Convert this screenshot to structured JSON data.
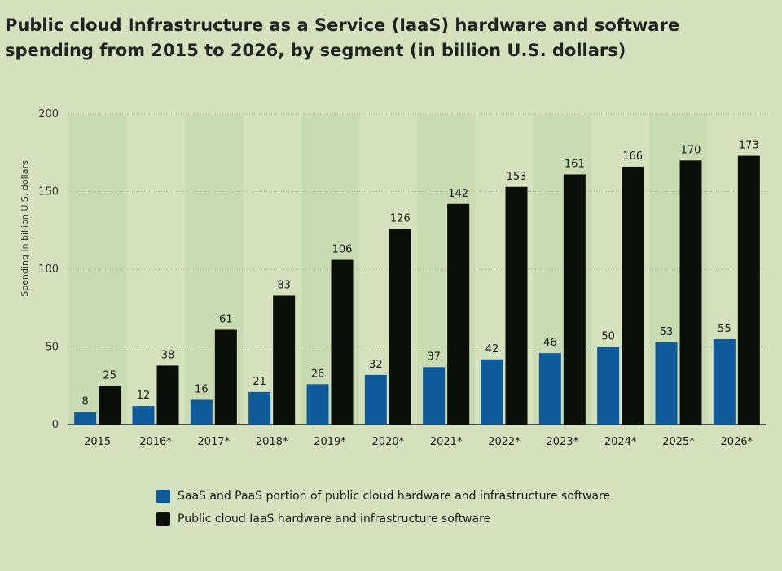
{
  "colors": {
    "background": "#d4e3bd",
    "band": "#c9dbb2",
    "saas": "#0e5a9a",
    "iaas": "#0a0f0a",
    "grid": "#9fae8c"
  },
  "chart_data": {
    "type": "bar",
    "title": "Public cloud Infrastructure as a Service (IaaS) hardware and software spending from 2015 to 2026, by segment (in billion U.S. dollars)",
    "xlabel": "",
    "ylabel": "Spending in billion U.S. dollars",
    "ylim": [
      0,
      200
    ],
    "yticks": [
      0,
      50,
      100,
      150,
      200
    ],
    "grid": true,
    "legend_position": "bottom",
    "categories": [
      "2015",
      "2016*",
      "2017*",
      "2018*",
      "2019*",
      "2020*",
      "2021*",
      "2022*",
      "2023*",
      "2024*",
      "2025*",
      "2026*"
    ],
    "series": [
      {
        "name": "SaaS and PaaS portion of public cloud hardware and infrastructure software",
        "values": [
          8,
          12,
          16,
          21,
          26,
          32,
          37,
          42,
          46,
          50,
          53,
          55
        ]
      },
      {
        "name": "Public cloud IaaS hardware and infrastructure software",
        "values": [
          25,
          38,
          61,
          83,
          106,
          126,
          142,
          153,
          161,
          166,
          170,
          173
        ]
      }
    ],
    "data_labels": true
  }
}
